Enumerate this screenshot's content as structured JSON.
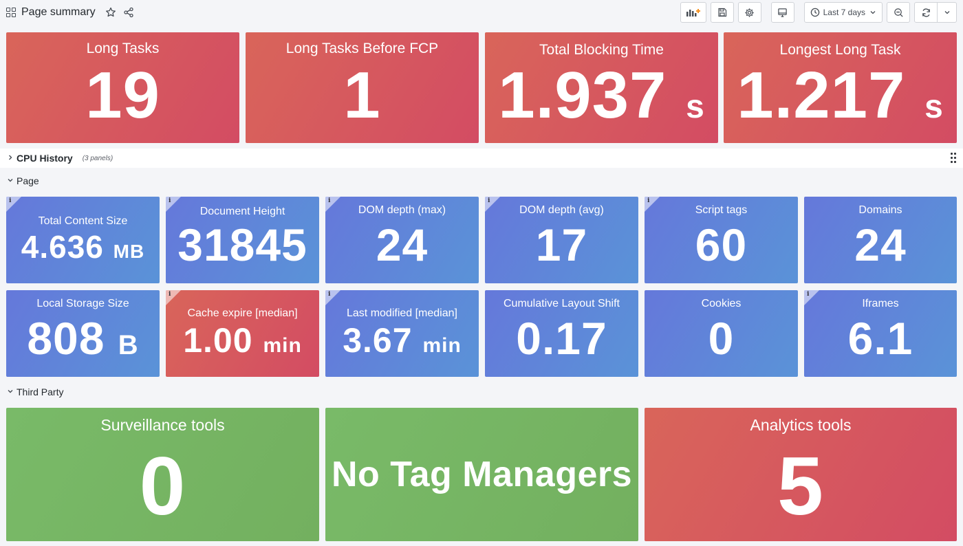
{
  "header": {
    "title": "Page summary",
    "time_range": "Last 7 days"
  },
  "top_stats": [
    {
      "title": "Long Tasks",
      "value": "19",
      "unit": ""
    },
    {
      "title": "Long Tasks Before FCP",
      "value": "1",
      "unit": ""
    },
    {
      "title": "Total Blocking Time",
      "value": "1.937",
      "unit": "s"
    },
    {
      "title": "Longest Long Task",
      "value": "1.217",
      "unit": "s"
    }
  ],
  "rows": {
    "cpu_history": {
      "title": "CPU History",
      "count": "(3 panels)"
    },
    "page": {
      "title": "Page"
    },
    "third_party": {
      "title": "Third Party"
    }
  },
  "page_stats": [
    {
      "title": "Total Content Size",
      "value": "4.636",
      "unit": "MB"
    },
    {
      "title": "Document Height",
      "value": "31845",
      "unit": ""
    },
    {
      "title": "DOM depth (max)",
      "value": "24",
      "unit": ""
    },
    {
      "title": "DOM depth (avg)",
      "value": "17",
      "unit": ""
    },
    {
      "title": "Script tags",
      "value": "60",
      "unit": ""
    },
    {
      "title": "Domains",
      "value": "24",
      "unit": ""
    },
    {
      "title": "Local Storage Size",
      "value": "808",
      "unit": "B"
    },
    {
      "title": "Cache expire [median]",
      "value": "1.00",
      "unit": "min"
    },
    {
      "title": "Last modified [median]",
      "value": "3.67",
      "unit": "min"
    },
    {
      "title": "Cumulative Layout Shift",
      "value": "0.17",
      "unit": ""
    },
    {
      "title": "Cookies",
      "value": "0",
      "unit": ""
    },
    {
      "title": "Iframes",
      "value": "6.1",
      "unit": ""
    }
  ],
  "third_party_stats": [
    {
      "title": "Surveillance tools",
      "value": "0"
    },
    {
      "title": "",
      "value": "No Tag Managers"
    },
    {
      "title": "Analytics tools",
      "value": "5"
    }
  ],
  "colors": {
    "red": "#d6595f",
    "blue": "#6186d9",
    "green": "#76b563",
    "background": "#f4f5f8"
  }
}
